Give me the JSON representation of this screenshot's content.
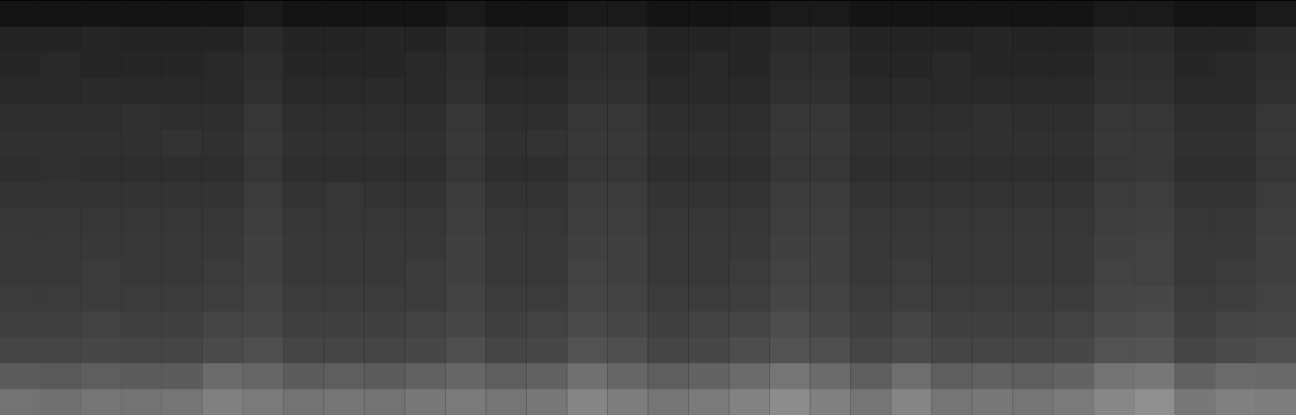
{
  "chart_data": {
    "type": "heatmap",
    "tick_labels": false,
    "grid": false,
    "color": "#ffffff",
    "zlim": [
      0,
      100
    ],
    "cells": [
      [
        8,
        8,
        8,
        8,
        8,
        8,
        10,
        8,
        8,
        8,
        8,
        10,
        8,
        8,
        10,
        10,
        8,
        8,
        8,
        10,
        10,
        8,
        8,
        8,
        8,
        8,
        8,
        10,
        10,
        8,
        8,
        10
      ],
      [
        14,
        14,
        15,
        14,
        14,
        14,
        17,
        14,
        14,
        15,
        14,
        17,
        14,
        14,
        17,
        17,
        14,
        14,
        15,
        17,
        17,
        14,
        14,
        14,
        15,
        14,
        14,
        17,
        17,
        14,
        14,
        17
      ],
      [
        15,
        16,
        15,
        15,
        15,
        16,
        18,
        15,
        15,
        15,
        16,
        18,
        15,
        15,
        18,
        18,
        15,
        16,
        15,
        18,
        18,
        15,
        15,
        16,
        15,
        15,
        15,
        18,
        18,
        15,
        16,
        18
      ],
      [
        16,
        16,
        17,
        16,
        16,
        16,
        19,
        16,
        16,
        17,
        16,
        19,
        16,
        16,
        19,
        19,
        16,
        16,
        16,
        19,
        19,
        16,
        17,
        16,
        16,
        16,
        16,
        19,
        19,
        16,
        16,
        19
      ],
      [
        18,
        18,
        18,
        19,
        18,
        18,
        21,
        18,
        18,
        18,
        18,
        21,
        18,
        18,
        21,
        21,
        18,
        18,
        18,
        21,
        21,
        18,
        18,
        18,
        19,
        18,
        18,
        21,
        21,
        18,
        18,
        21
      ],
      [
        19,
        19,
        19,
        19,
        20,
        19,
        22,
        19,
        19,
        19,
        19,
        22,
        19,
        20,
        22,
        22,
        19,
        19,
        19,
        22,
        22,
        19,
        19,
        19,
        19,
        19,
        19,
        22,
        22,
        19,
        19,
        22
      ],
      [
        18,
        19,
        18,
        18,
        18,
        18,
        21,
        18,
        18,
        18,
        18,
        21,
        18,
        18,
        21,
        21,
        18,
        18,
        18,
        21,
        21,
        18,
        18,
        18,
        18,
        18,
        18,
        21,
        22,
        18,
        18,
        21
      ],
      [
        20,
        20,
        20,
        20,
        20,
        20,
        23,
        20,
        21,
        20,
        20,
        23,
        20,
        20,
        23,
        23,
        20,
        20,
        20,
        23,
        23,
        20,
        20,
        20,
        20,
        20,
        20,
        23,
        24,
        20,
        20,
        23
      ],
      [
        21,
        21,
        21,
        21,
        21,
        21,
        24,
        21,
        21,
        21,
        21,
        24,
        21,
        21,
        24,
        24,
        21,
        21,
        21,
        24,
        24,
        21,
        21,
        21,
        21,
        21,
        21,
        24,
        25,
        21,
        21,
        24
      ],
      [
        22,
        22,
        22,
        22,
        22,
        22,
        25,
        22,
        22,
        22,
        22,
        25,
        22,
        22,
        25,
        25,
        22,
        22,
        22,
        25,
        25,
        22,
        22,
        22,
        22,
        22,
        22,
        25,
        26,
        22,
        22,
        25
      ],
      [
        22,
        22,
        23,
        22,
        22,
        23,
        25,
        22,
        22,
        22,
        23,
        25,
        22,
        22,
        26,
        25,
        22,
        22,
        23,
        26,
        25,
        22,
        23,
        22,
        22,
        22,
        22,
        26,
        26,
        22,
        23,
        25
      ],
      [
        23,
        23,
        23,
        23,
        23,
        24,
        26,
        23,
        23,
        23,
        23,
        26,
        23,
        23,
        27,
        26,
        23,
        23,
        24,
        27,
        26,
        23,
        24,
        23,
        23,
        23,
        23,
        27,
        28,
        23,
        24,
        26
      ],
      [
        25,
        25,
        26,
        25,
        25,
        27,
        28,
        25,
        25,
        25,
        26,
        28,
        25,
        26,
        29,
        28,
        25,
        26,
        27,
        30,
        28,
        25,
        27,
        25,
        25,
        25,
        26,
        29,
        30,
        25,
        27,
        28
      ],
      [
        27,
        27,
        28,
        27,
        27,
        29,
        31,
        27,
        27,
        27,
        28,
        31,
        27,
        28,
        32,
        31,
        27,
        28,
        30,
        32,
        31,
        27,
        29,
        27,
        27,
        27,
        28,
        32,
        33,
        27,
        29,
        31
      ],
      [
        36,
        35,
        37,
        36,
        36,
        42,
        40,
        36,
        37,
        36,
        38,
        40,
        37,
        38,
        44,
        40,
        37,
        39,
        42,
        46,
        42,
        37,
        43,
        37,
        38,
        37,
        39,
        45,
        47,
        38,
        42,
        41
      ],
      [
        45,
        44,
        46,
        45,
        46,
        50,
        48,
        45,
        46,
        45,
        47,
        48,
        46,
        47,
        52,
        49,
        46,
        48,
        51,
        55,
        50,
        46,
        52,
        46,
        47,
        46,
        48,
        53,
        56,
        47,
        50,
        49
      ]
    ]
  }
}
